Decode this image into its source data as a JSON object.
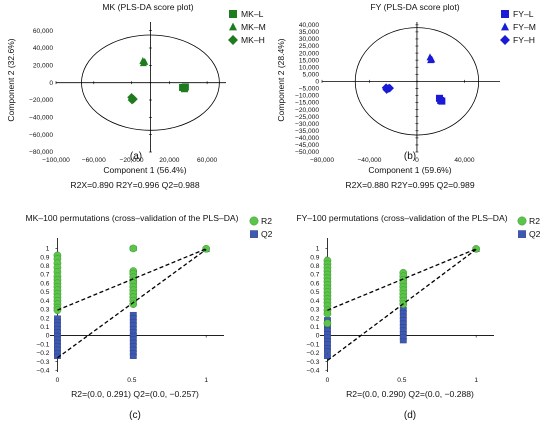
{
  "chart_data": [
    {
      "id": "a",
      "type": "scatter",
      "title": "MK (PLS-DA score plot)",
      "xlabel": "Component 1 (56.4%)",
      "ylabel": "Component 2 (32.6%)",
      "xlim": [
        -100000,
        80000
      ],
      "ylim": [
        -80000,
        70000
      ],
      "xticks": [
        -100000,
        -60000,
        -20000,
        20000,
        60000
      ],
      "xtick_labels": [
        "−100,000",
        "−60,000",
        "−20,000",
        "20,000",
        "60,000"
      ],
      "yticks": [
        -80000,
        -60000,
        -40000,
        -20000,
        0,
        20000,
        40000,
        60000
      ],
      "ytick_labels": [
        "−80,000",
        "−60,000",
        "−40,000",
        "−20,000",
        "0",
        "20,000",
        "40,000",
        "60,000"
      ],
      "ellipse": {
        "center": [
          0,
          0
        ],
        "rx": 73000,
        "ry": 55000
      },
      "legend": "top-right",
      "series": [
        {
          "name": "MK–L",
          "marker": "square",
          "color": "#1e7b1e",
          "points": [
            [
              34000,
              -5500
            ],
            [
              37000,
              -5000
            ],
            [
              36000,
              -7000
            ]
          ]
        },
        {
          "name": "MK–M",
          "marker": "triangle",
          "color": "#1e7b1e",
          "points": [
            [
              -8000,
              25000
            ],
            [
              -6000,
              24000
            ],
            [
              -7500,
              22500
            ]
          ]
        },
        {
          "name": "MK–H",
          "marker": "diamond",
          "color": "#1e7b1e",
          "points": [
            [
              -20000,
              -17000
            ],
            [
              -18000,
              -19000
            ],
            [
              -19500,
              -20000
            ]
          ]
        }
      ],
      "metrics": "R2X=0.890 R2Y=0.996 Q2=0.988",
      "panel_label": "(a)"
    },
    {
      "id": "b",
      "type": "scatter",
      "title": "FY (PLS-DA score plot)",
      "xlabel": "Component 1 (59.6%)",
      "ylabel": "Component 2 (28.4%)",
      "xlim": [
        -80000,
        70000
      ],
      "ylim": [
        -50000,
        42000
      ],
      "xticks": [
        -80000,
        -40000,
        0,
        40000
      ],
      "xtick_labels": [
        "−80,000",
        "−40,000",
        "0",
        "40,000"
      ],
      "yticks": [
        -50000,
        -45000,
        -40000,
        -35000,
        -30000,
        -25000,
        -20000,
        -15000,
        -10000,
        -5000,
        0,
        5000,
        10000,
        15000,
        20000,
        25000,
        30000,
        35000,
        40000
      ],
      "ytick_labels": [
        "−50,000",
        "−45,000",
        "−40,000",
        "−35,000",
        "−30,000",
        "−25,000",
        "−20,000",
        "−15,000",
        "−10,000",
        "−5,000",
        "0",
        "5,000",
        "10,000",
        "15,000",
        "20,000",
        "25,000",
        "30,000",
        "35,000",
        "40,000"
      ],
      "ellipse": {
        "center": [
          0,
          0
        ],
        "rx": 52000,
        "ry": 38000
      },
      "legend": "top-right",
      "series": [
        {
          "name": "FY–L",
          "marker": "square",
          "color": "#1a1ad6",
          "points": [
            [
              19000,
              -12000
            ],
            [
              21000,
              -14000
            ],
            [
              20000,
              -13500
            ]
          ]
        },
        {
          "name": "FY–M",
          "marker": "triangle",
          "color": "#1a1ad6",
          "points": [
            [
              11000,
              17000
            ],
            [
              12500,
              15500
            ],
            [
              11500,
              15000
            ]
          ]
        },
        {
          "name": "FY–H",
          "marker": "diamond",
          "color": "#1a1ad6",
          "points": [
            [
              -26000,
              -4500
            ],
            [
              -24000,
              -5000
            ],
            [
              -25500,
              -5800
            ],
            [
              -23000,
              -4800
            ]
          ]
        }
      ],
      "metrics": "R2X=0.880 R2Y=0.995 Q2=0.989",
      "panel_label": "(b)"
    },
    {
      "id": "c",
      "type": "scatter",
      "title": "MK–100 permutations (cross–validation of the PLS–DA)",
      "xlim": [
        -0.05,
        1.12
      ],
      "ylim": [
        -0.42,
        1.12
      ],
      "xticks": [
        0,
        0.5,
        1
      ],
      "xtick_labels": [
        "0",
        "0.5",
        "1"
      ],
      "yticks": [
        -0.4,
        -0.3,
        -0.2,
        -0.1,
        0,
        0.1,
        0.2,
        0.3,
        0.4,
        0.5,
        0.6,
        0.7,
        0.8,
        0.9,
        1
      ],
      "ytick_labels": [
        "−0.4",
        "−0.3",
        "−0.2",
        "−0.1",
        "0",
        "0.1",
        "0.2",
        "0.3",
        "0.4",
        "0.5",
        "0.6",
        "0.7",
        "0.8",
        "0.9",
        "1"
      ],
      "legend": "right",
      "series": [
        {
          "name": "R2",
          "marker": "circle",
          "color": "#5cc44a",
          "points": [
            [
              0,
              0.92
            ],
            [
              0,
              0.88
            ],
            [
              0,
              0.83
            ],
            [
              0,
              0.78
            ],
            [
              0,
              0.73
            ],
            [
              0,
              0.68
            ],
            [
              0,
              0.64
            ],
            [
              0,
              0.6
            ],
            [
              0,
              0.56
            ],
            [
              0,
              0.52
            ],
            [
              0,
              0.48
            ],
            [
              0,
              0.44
            ],
            [
              0,
              0.4
            ],
            [
              0,
              0.36
            ],
            [
              0,
              0.32
            ],
            [
              0,
              0.29
            ],
            [
              0.51,
              1.0
            ],
            [
              0.51,
              0.74
            ],
            [
              0.51,
              0.71
            ],
            [
              0.51,
              0.67
            ],
            [
              0.51,
              0.63
            ],
            [
              0.51,
              0.6
            ],
            [
              0.51,
              0.56
            ],
            [
              0.51,
              0.52
            ],
            [
              0.51,
              0.48
            ],
            [
              0.51,
              0.44
            ],
            [
              0.51,
              0.4
            ],
            [
              0.51,
              0.36
            ],
            [
              1,
              0.996
            ]
          ]
        },
        {
          "name": "Q2",
          "marker": "square",
          "color": "#3e59b0",
          "points": [
            [
              0,
              0.2
            ],
            [
              0,
              0.16
            ],
            [
              0,
              0.12
            ],
            [
              0,
              0.08
            ],
            [
              0,
              0.04
            ],
            [
              0,
              0.0
            ],
            [
              0,
              -0.04
            ],
            [
              0,
              -0.08
            ],
            [
              0,
              -0.12
            ],
            [
              0,
              -0.16
            ],
            [
              0,
              -0.2
            ],
            [
              0,
              -0.24
            ],
            [
              0.51,
              1.0
            ],
            [
              0.51,
              0.24
            ],
            [
              0.51,
              0.2
            ],
            [
              0.51,
              0.16
            ],
            [
              0.51,
              0.12
            ],
            [
              0.51,
              0.08
            ],
            [
              0.51,
              0.04
            ],
            [
              0.51,
              0.0
            ],
            [
              0.51,
              -0.04
            ],
            [
              0.51,
              -0.08
            ],
            [
              0.51,
              -0.12
            ],
            [
              0.51,
              -0.16
            ],
            [
              0.51,
              -0.2
            ],
            [
              0.51,
              -0.24
            ],
            [
              1,
              0.988
            ]
          ]
        }
      ],
      "regression_lines": [
        {
          "name": "R2",
          "from": [
            0,
            0.291
          ],
          "to": [
            1,
            0.996
          ]
        },
        {
          "name": "Q2",
          "from": [
            0,
            -0.257
          ],
          "to": [
            1,
            0.988
          ]
        }
      ],
      "metrics": "R2=(0.0, 0.291) Q2=(0.0, −0.257)",
      "panel_label": "(c)"
    },
    {
      "id": "d",
      "type": "scatter",
      "title": "FY–100 permutations (cross–validation of the PLS–DA)",
      "xlim": [
        -0.05,
        1.12
      ],
      "ylim": [
        -0.42,
        1.12
      ],
      "xticks": [
        0,
        0.5,
        1
      ],
      "xtick_labels": [
        "0",
        "0.5",
        "1"
      ],
      "yticks": [
        -0.4,
        -0.3,
        -0.2,
        -0.1,
        0,
        0.1,
        0.2,
        0.3,
        0.4,
        0.5,
        0.6,
        0.7,
        0.8,
        0.9,
        1
      ],
      "ytick_labels": [
        "−0.4",
        "−0.3",
        "−0.2",
        "−0.1",
        "0",
        "0.1",
        "0.2",
        "0.3",
        "0.4",
        "0.5",
        "0.6",
        "0.7",
        "0.8",
        "0.9",
        "1"
      ],
      "legend": "right",
      "series": [
        {
          "name": "R2",
          "marker": "circle",
          "color": "#5cc44a",
          "points": [
            [
              0,
              0.86
            ],
            [
              0,
              0.82
            ],
            [
              0,
              0.78
            ],
            [
              0,
              0.74
            ],
            [
              0,
              0.7
            ],
            [
              0,
              0.66
            ],
            [
              0,
              0.62
            ],
            [
              0,
              0.58
            ],
            [
              0,
              0.54
            ],
            [
              0,
              0.5
            ],
            [
              0,
              0.46
            ],
            [
              0,
              0.42
            ],
            [
              0,
              0.38
            ],
            [
              0,
              0.34
            ],
            [
              0,
              0.29
            ],
            [
              0,
              0.25
            ],
            [
              0,
              0.14
            ],
            [
              0.51,
              0.72
            ],
            [
              0.51,
              0.68
            ],
            [
              0.51,
              0.64
            ],
            [
              0.51,
              0.6
            ],
            [
              0.51,
              0.56
            ],
            [
              0.51,
              0.52
            ],
            [
              0.51,
              0.48
            ],
            [
              0.51,
              0.44
            ],
            [
              0.51,
              0.4
            ],
            [
              0.51,
              0.36
            ],
            [
              1,
              0.995
            ]
          ]
        },
        {
          "name": "Q2",
          "marker": "square",
          "color": "#3e59b0",
          "points": [
            [
              0,
              0.18
            ],
            [
              0,
              0.14
            ],
            [
              0,
              0.1
            ],
            [
              0,
              0.06
            ],
            [
              0,
              0.02
            ],
            [
              0,
              -0.02
            ],
            [
              0,
              -0.06
            ],
            [
              0,
              -0.1
            ],
            [
              0,
              -0.14
            ],
            [
              0,
              -0.18
            ],
            [
              0,
              -0.24
            ],
            [
              0.51,
              0.3
            ],
            [
              0.51,
              0.26
            ],
            [
              0.51,
              0.22
            ],
            [
              0.51,
              0.18
            ],
            [
              0.51,
              0.14
            ],
            [
              0.51,
              0.1
            ],
            [
              0.51,
              0.06
            ],
            [
              0.51,
              0.02
            ],
            [
              0.51,
              -0.02
            ],
            [
              0.51,
              -0.06
            ],
            [
              1,
              0.989
            ]
          ]
        }
      ],
      "regression_lines": [
        {
          "name": "R2",
          "from": [
            0,
            0.29
          ],
          "to": [
            1,
            0.995
          ]
        },
        {
          "name": "Q2",
          "from": [
            0,
            -0.288
          ],
          "to": [
            1,
            0.989
          ]
        }
      ],
      "metrics": "R2=(0.0, 0.290) Q2=(0.0, −0.288)",
      "panel_label": "(d)"
    }
  ]
}
